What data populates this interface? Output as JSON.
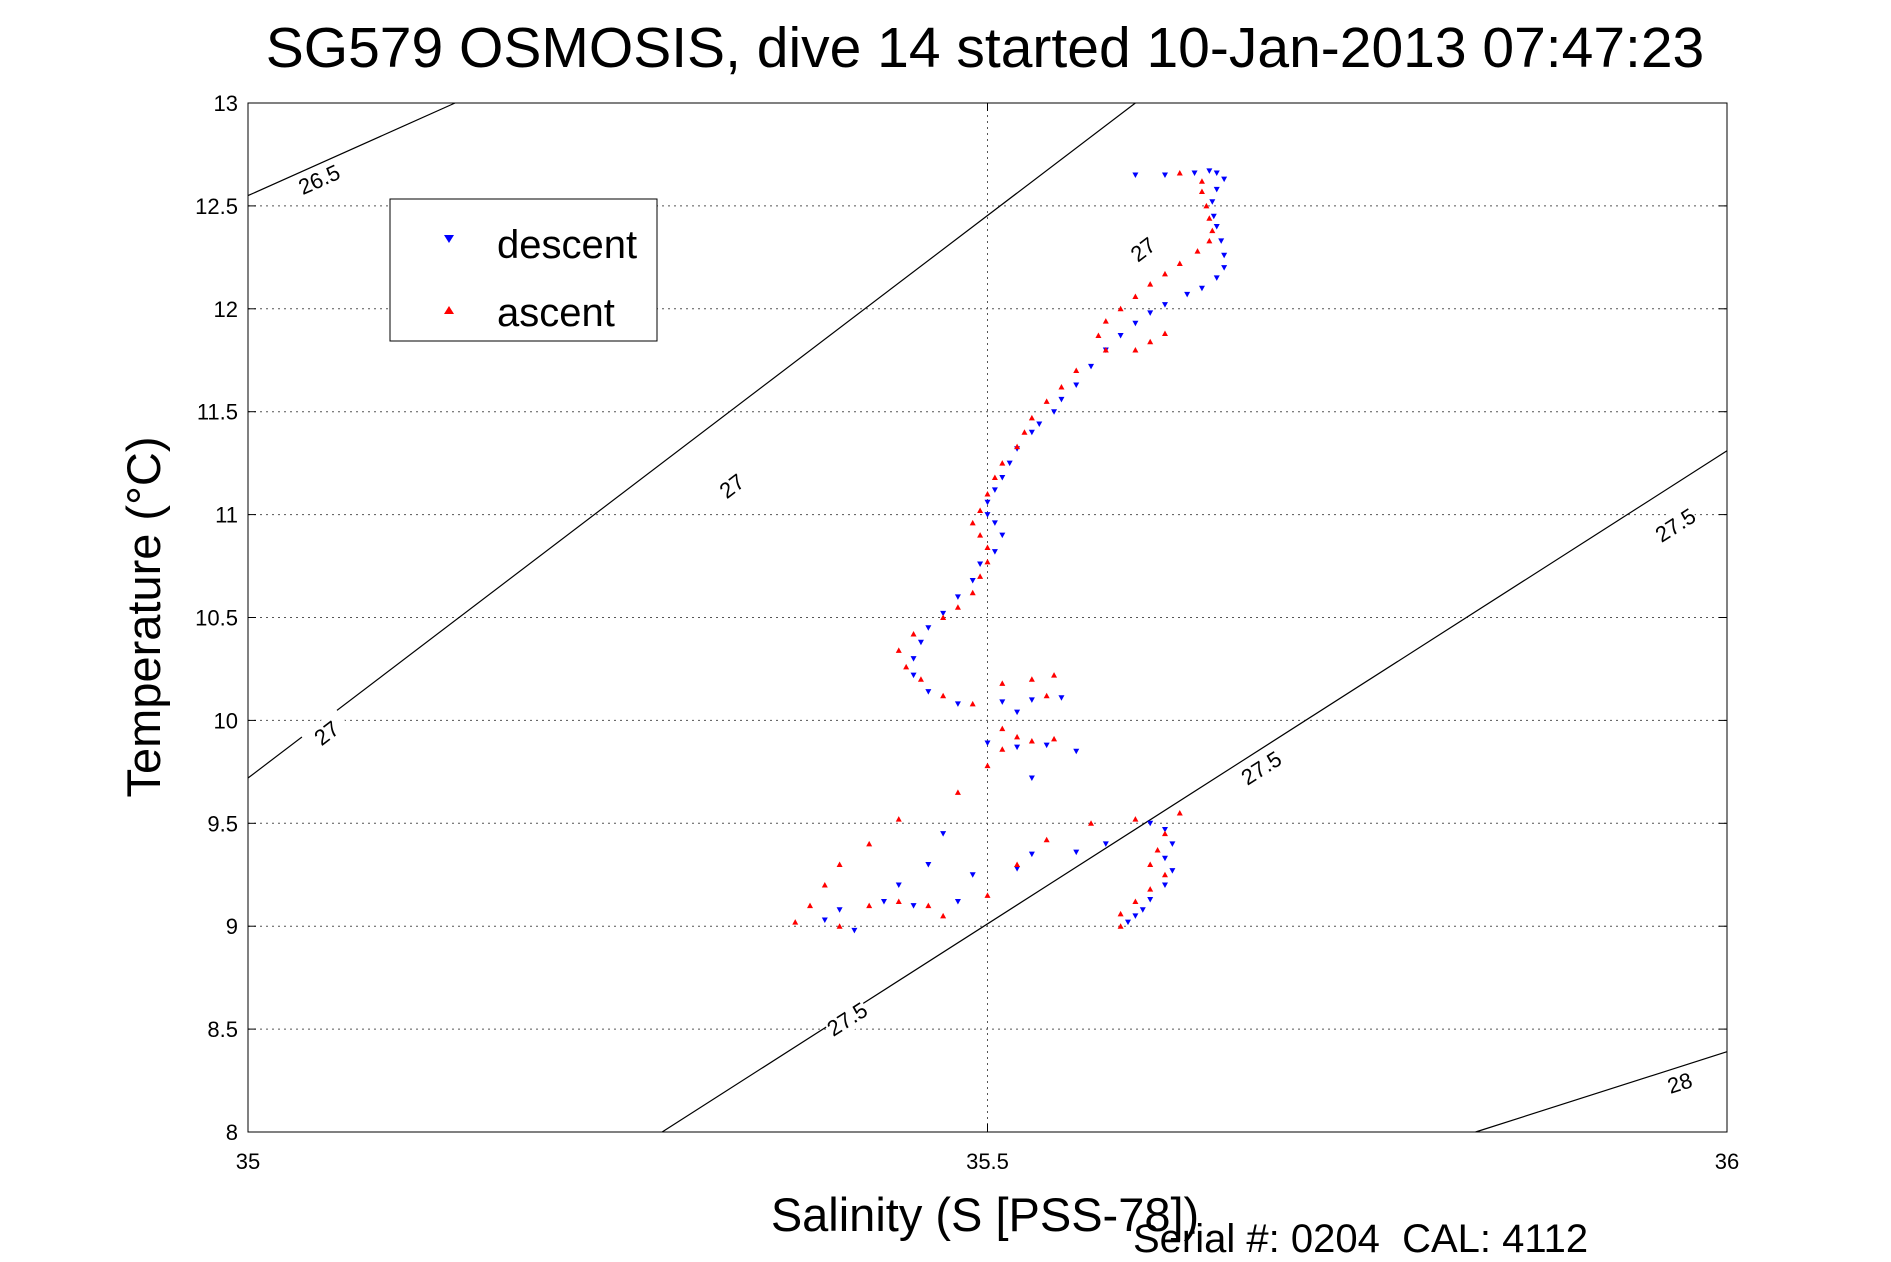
{
  "chart_data": {
    "type": "scatter",
    "title": "SG579 OSMOSIS, dive 14 started 10-Jan-2013 07:47:23",
    "xlabel": "Salinity (S [PSS-78])",
    "ylabel": "Temperature (°C)",
    "xlim": [
      35,
      36
    ],
    "ylim": [
      8,
      13
    ],
    "x_ticks": [
      "35",
      "35.5",
      "36"
    ],
    "y_ticks": [
      "8",
      "8.5",
      "9",
      "9.5",
      "10",
      "10.5",
      "11",
      "11.5",
      "12",
      "12.5",
      "13"
    ],
    "grid": true,
    "legend_position": "top-left",
    "footer": "Serial #: 0204  CAL: 4112",
    "contours": [
      {
        "label": "26.5",
        "x": [
          35.0,
          35.14
        ],
        "y": [
          12.55,
          13.0
        ],
        "labels": [
          {
            "text": "26.5",
            "x": 35.048,
            "y": 12.63
          }
        ]
      },
      {
        "label": "27",
        "x": [
          35.0,
          35.6
        ],
        "y": [
          9.72,
          13.0
        ],
        "labels": [
          {
            "text": "27",
            "x": 35.053,
            "y": 9.94
          },
          {
            "text": "27",
            "x": 35.327,
            "y": 11.14
          },
          {
            "text": "27",
            "x": 35.605,
            "y": 12.29
          }
        ]
      },
      {
        "label": "27.5",
        "x": [
          35.28,
          36.0
        ],
        "y": [
          8.0,
          11.31
        ],
        "labels": [
          {
            "text": "27.5",
            "x": 35.405,
            "y": 8.55
          },
          {
            "text": "27.5",
            "x": 35.685,
            "y": 9.77
          },
          {
            "text": "27.5",
            "x": 35.965,
            "y": 10.95
          }
        ]
      },
      {
        "label": "28",
        "x": [
          35.83,
          36.0
        ],
        "y": [
          8.0,
          8.39
        ],
        "labels": [
          {
            "text": "28",
            "x": 35.968,
            "y": 8.24
          }
        ]
      }
    ],
    "series": [
      {
        "name": "descent",
        "color": "#0000ff",
        "marker": "triangle-down",
        "points": [
          [
            35.6,
            12.65
          ],
          [
            35.62,
            12.65
          ],
          [
            35.64,
            12.66
          ],
          [
            35.65,
            12.67
          ],
          [
            35.655,
            12.66
          ],
          [
            35.66,
            12.63
          ],
          [
            35.655,
            12.58
          ],
          [
            35.652,
            12.52
          ],
          [
            35.653,
            12.45
          ],
          [
            35.655,
            12.4
          ],
          [
            35.658,
            12.33
          ],
          [
            35.66,
            12.26
          ],
          [
            35.66,
            12.2
          ],
          [
            35.655,
            12.15
          ],
          [
            35.645,
            12.1
          ],
          [
            35.635,
            12.07
          ],
          [
            35.62,
            12.02
          ],
          [
            35.61,
            11.98
          ],
          [
            35.6,
            11.93
          ],
          [
            35.59,
            11.87
          ],
          [
            35.58,
            11.8
          ],
          [
            35.57,
            11.72
          ],
          [
            35.56,
            11.63
          ],
          [
            35.55,
            11.56
          ],
          [
            35.545,
            11.5
          ],
          [
            35.535,
            11.44
          ],
          [
            35.53,
            11.4
          ],
          [
            35.52,
            11.32
          ],
          [
            35.515,
            11.25
          ],
          [
            35.51,
            11.18
          ],
          [
            35.505,
            11.12
          ],
          [
            35.5,
            11.06
          ],
          [
            35.5,
            11.0
          ],
          [
            35.505,
            10.96
          ],
          [
            35.51,
            10.9
          ],
          [
            35.505,
            10.82
          ],
          [
            35.495,
            10.76
          ],
          [
            35.49,
            10.68
          ],
          [
            35.48,
            10.6
          ],
          [
            35.47,
            10.52
          ],
          [
            35.46,
            10.45
          ],
          [
            35.455,
            10.38
          ],
          [
            35.45,
            10.3
          ],
          [
            35.45,
            10.22
          ],
          [
            35.46,
            10.14
          ],
          [
            35.48,
            10.08
          ],
          [
            35.51,
            10.09
          ],
          [
            35.53,
            10.1
          ],
          [
            35.55,
            10.11
          ],
          [
            35.52,
            10.04
          ],
          [
            35.5,
            9.89
          ],
          [
            35.52,
            9.87
          ],
          [
            35.54,
            9.88
          ],
          [
            35.56,
            9.85
          ],
          [
            35.53,
            9.72
          ],
          [
            35.47,
            9.45
          ],
          [
            35.46,
            9.3
          ],
          [
            35.49,
            9.25
          ],
          [
            35.52,
            9.28
          ],
          [
            35.44,
            9.2
          ],
          [
            35.43,
            9.12
          ],
          [
            35.4,
            9.08
          ],
          [
            35.39,
            9.03
          ],
          [
            35.41,
            8.98
          ],
          [
            35.45,
            9.1
          ],
          [
            35.48,
            9.12
          ],
          [
            35.53,
            9.35
          ],
          [
            35.56,
            9.36
          ],
          [
            35.58,
            9.4
          ],
          [
            35.61,
            9.5
          ],
          [
            35.62,
            9.47
          ],
          [
            35.625,
            9.4
          ],
          [
            35.62,
            9.33
          ],
          [
            35.625,
            9.27
          ],
          [
            35.62,
            9.2
          ],
          [
            35.61,
            9.13
          ],
          [
            35.605,
            9.08
          ],
          [
            35.6,
            9.05
          ],
          [
            35.595,
            9.02
          ]
        ]
      },
      {
        "name": "ascent",
        "color": "#ff0000",
        "marker": "triangle-up",
        "points": [
          [
            35.63,
            12.66
          ],
          [
            35.645,
            12.62
          ],
          [
            35.645,
            12.57
          ],
          [
            35.648,
            12.5
          ],
          [
            35.65,
            12.44
          ],
          [
            35.652,
            12.38
          ],
          [
            35.65,
            12.33
          ],
          [
            35.642,
            12.28
          ],
          [
            35.63,
            12.22
          ],
          [
            35.62,
            12.17
          ],
          [
            35.61,
            12.12
          ],
          [
            35.6,
            12.06
          ],
          [
            35.59,
            12.0
          ],
          [
            35.58,
            11.94
          ],
          [
            35.575,
            11.87
          ],
          [
            35.58,
            11.8
          ],
          [
            35.6,
            11.8
          ],
          [
            35.61,
            11.84
          ],
          [
            35.62,
            11.88
          ],
          [
            35.56,
            11.7
          ],
          [
            35.55,
            11.62
          ],
          [
            35.54,
            11.55
          ],
          [
            35.53,
            11.47
          ],
          [
            35.525,
            11.4
          ],
          [
            35.52,
            11.33
          ],
          [
            35.51,
            11.25
          ],
          [
            35.505,
            11.18
          ],
          [
            35.5,
            11.1
          ],
          [
            35.495,
            11.02
          ],
          [
            35.49,
            10.96
          ],
          [
            35.495,
            10.9
          ],
          [
            35.5,
            10.84
          ],
          [
            35.5,
            10.77
          ],
          [
            35.495,
            10.7
          ],
          [
            35.49,
            10.62
          ],
          [
            35.48,
            10.55
          ],
          [
            35.47,
            10.5
          ],
          [
            35.45,
            10.42
          ],
          [
            35.44,
            10.34
          ],
          [
            35.445,
            10.26
          ],
          [
            35.455,
            10.2
          ],
          [
            35.47,
            10.12
          ],
          [
            35.49,
            10.08
          ],
          [
            35.51,
            10.18
          ],
          [
            35.53,
            10.2
          ],
          [
            35.545,
            10.22
          ],
          [
            35.54,
            10.12
          ],
          [
            35.51,
            9.96
          ],
          [
            35.52,
            9.92
          ],
          [
            35.53,
            9.9
          ],
          [
            35.545,
            9.91
          ],
          [
            35.51,
            9.86
          ],
          [
            35.5,
            9.78
          ],
          [
            35.48,
            9.65
          ],
          [
            35.44,
            9.52
          ],
          [
            35.42,
            9.4
          ],
          [
            35.4,
            9.3
          ],
          [
            35.39,
            9.2
          ],
          [
            35.38,
            9.1
          ],
          [
            35.37,
            9.02
          ],
          [
            35.4,
            9.0
          ],
          [
            35.42,
            9.1
          ],
          [
            35.44,
            9.12
          ],
          [
            35.46,
            9.1
          ],
          [
            35.47,
            9.05
          ],
          [
            35.5,
            9.15
          ],
          [
            35.52,
            9.3
          ],
          [
            35.54,
            9.42
          ],
          [
            35.57,
            9.5
          ],
          [
            35.6,
            9.52
          ],
          [
            35.63,
            9.55
          ],
          [
            35.62,
            9.45
          ],
          [
            35.615,
            9.37
          ],
          [
            35.61,
            9.3
          ],
          [
            35.62,
            9.25
          ],
          [
            35.61,
            9.18
          ],
          [
            35.6,
            9.12
          ],
          [
            35.59,
            9.06
          ],
          [
            35.59,
            9.0
          ]
        ]
      }
    ]
  }
}
